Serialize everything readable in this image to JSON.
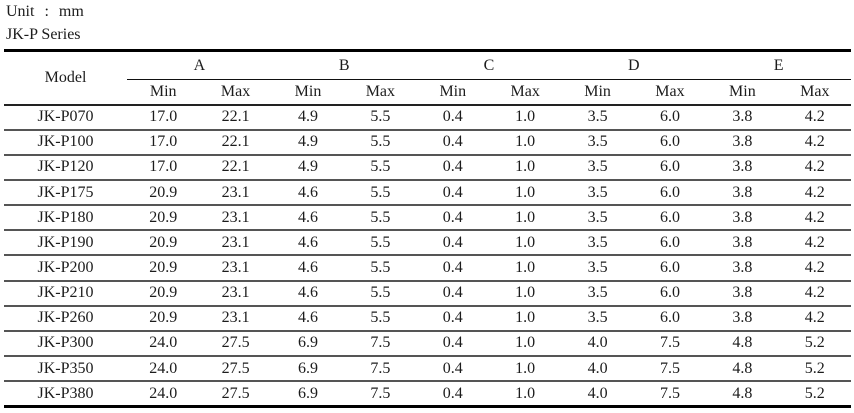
{
  "page": {
    "unit_label": "Unit : mm",
    "series_label": "JK-P Series"
  },
  "colors": {
    "background": "#ffffff",
    "text": "#1c1c1c",
    "rule_heavy": "#000000",
    "rule_light": "#555555"
  },
  "table": {
    "model_header": "Model",
    "groups": [
      "A",
      "B",
      "C",
      "D",
      "E"
    ],
    "sub_headers": [
      "Min",
      "Max"
    ],
    "rows": [
      {
        "model": "JK-P070",
        "values": [
          "17.0",
          "22.1",
          "4.9",
          "5.5",
          "0.4",
          "1.0",
          "3.5",
          "6.0",
          "3.8",
          "4.2"
        ]
      },
      {
        "model": "JK-P100",
        "values": [
          "17.0",
          "22.1",
          "4.9",
          "5.5",
          "0.4",
          "1.0",
          "3.5",
          "6.0",
          "3.8",
          "4.2"
        ]
      },
      {
        "model": "JK-P120",
        "values": [
          "17.0",
          "22.1",
          "4.9",
          "5.5",
          "0.4",
          "1.0",
          "3.5",
          "6.0",
          "3.8",
          "4.2"
        ]
      },
      {
        "model": "JK-P175",
        "values": [
          "20.9",
          "23.1",
          "4.6",
          "5.5",
          "0.4",
          "1.0",
          "3.5",
          "6.0",
          "3.8",
          "4.2"
        ]
      },
      {
        "model": "JK-P180",
        "values": [
          "20.9",
          "23.1",
          "4.6",
          "5.5",
          "0.4",
          "1.0",
          "3.5",
          "6.0",
          "3.8",
          "4.2"
        ]
      },
      {
        "model": "JK-P190",
        "values": [
          "20.9",
          "23.1",
          "4.6",
          "5.5",
          "0.4",
          "1.0",
          "3.5",
          "6.0",
          "3.8",
          "4.2"
        ]
      },
      {
        "model": "JK-P200",
        "values": [
          "20.9",
          "23.1",
          "4.6",
          "5.5",
          "0.4",
          "1.0",
          "3.5",
          "6.0",
          "3.8",
          "4.2"
        ]
      },
      {
        "model": "JK-P210",
        "values": [
          "20.9",
          "23.1",
          "4.6",
          "5.5",
          "0.4",
          "1.0",
          "3.5",
          "6.0",
          "3.8",
          "4.2"
        ]
      },
      {
        "model": "JK-P260",
        "values": [
          "20.9",
          "23.1",
          "4.6",
          "5.5",
          "0.4",
          "1.0",
          "3.5",
          "6.0",
          "3.8",
          "4.2"
        ]
      },
      {
        "model": "JK-P300",
        "values": [
          "24.0",
          "27.5",
          "6.9",
          "7.5",
          "0.4",
          "1.0",
          "4.0",
          "7.5",
          "4.8",
          "5.2"
        ]
      },
      {
        "model": "JK-P350",
        "values": [
          "24.0",
          "27.5",
          "6.9",
          "7.5",
          "0.4",
          "1.0",
          "4.0",
          "7.5",
          "4.8",
          "5.2"
        ]
      },
      {
        "model": "JK-P380",
        "values": [
          "24.0",
          "27.5",
          "6.9",
          "7.5",
          "0.4",
          "1.0",
          "4.0",
          "7.5",
          "4.8",
          "5.2"
        ]
      }
    ]
  }
}
